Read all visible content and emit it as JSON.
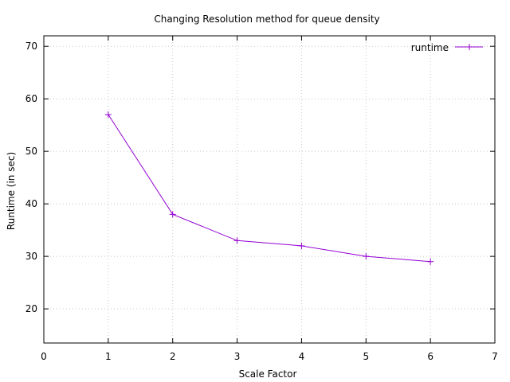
{
  "chart_data": {
    "type": "line",
    "title": "Changing Resolution method for queue density",
    "xlabel": "Scale Factor",
    "ylabel": "Runtime (in sec)",
    "xlim": [
      0,
      7
    ],
    "ylim": [
      13.5,
      72
    ],
    "xticks": [
      0,
      1,
      2,
      3,
      4,
      5,
      6,
      7
    ],
    "yticks": [
      20,
      30,
      40,
      50,
      60,
      70
    ],
    "grid": true,
    "legend_position": "top-right",
    "series": [
      {
        "name": "runtime",
        "color": "#9400d3",
        "marker": "plus",
        "x": [
          1,
          2,
          3,
          4,
          5,
          6
        ],
        "y": [
          57,
          38,
          33,
          32,
          30,
          29
        ]
      }
    ]
  }
}
